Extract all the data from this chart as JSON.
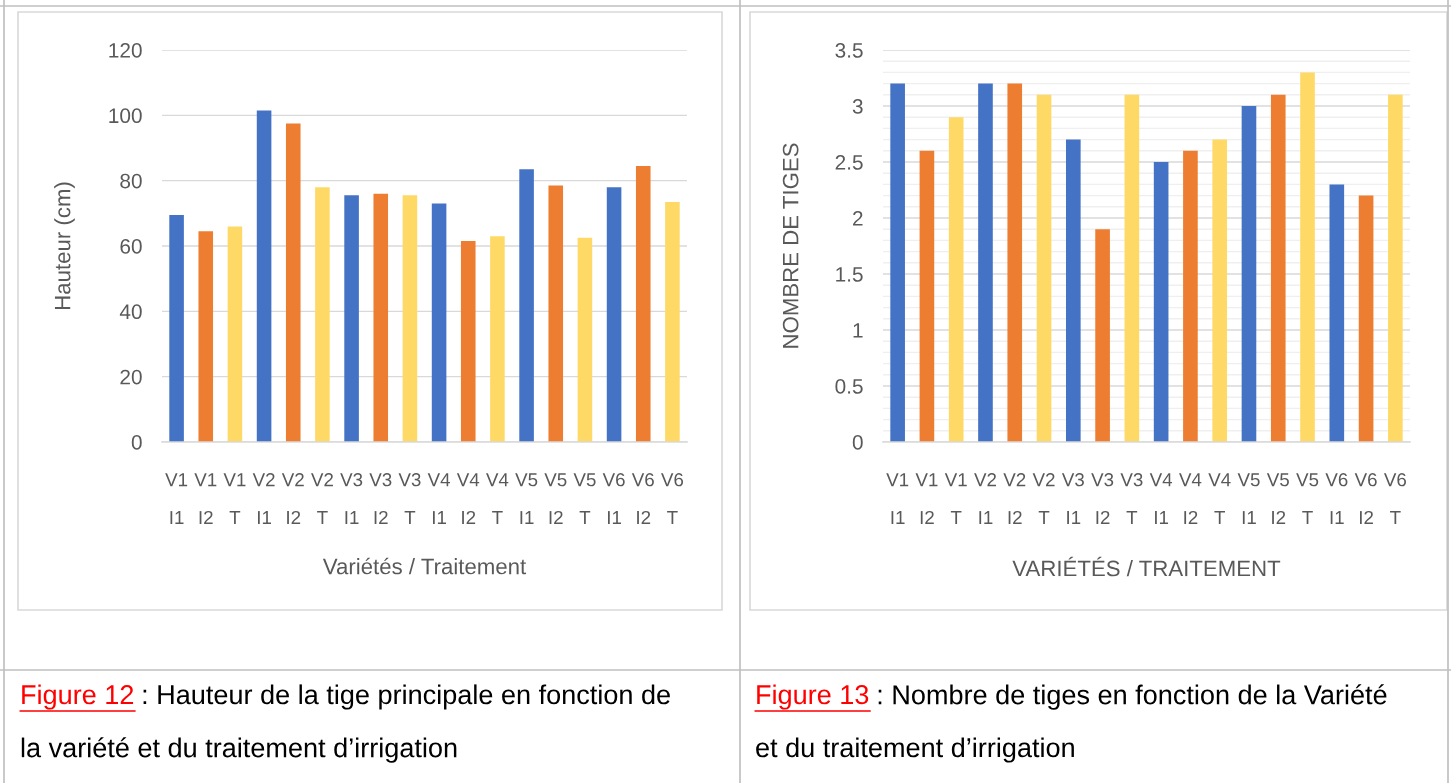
{
  "chart_data": [
    {
      "type": "bar",
      "categories": [
        "V1\nI1",
        "V1\nI2",
        "V1\nT",
        "V2\nI1",
        "V2\nI2",
        "V2\nT",
        "V3\nI1",
        "V3\nI2",
        "V3\nT",
        "V4\nI1",
        "V4\nI2",
        "V4\nT",
        "V5\nI1",
        "V5\nI2",
        "V5\nT",
        "V6\nI1",
        "V6\nI2",
        "V6\nT"
      ],
      "values": [
        69.5,
        64.5,
        66,
        101.5,
        97.5,
        78,
        75.5,
        76,
        75.5,
        73,
        61.5,
        63,
        83.5,
        78.5,
        62.5,
        78,
        84.5,
        73.5
      ],
      "colors": [
        "#4472c4",
        "#ed7d31",
        "#ffd966",
        "#4472c4",
        "#ed7d31",
        "#ffd966",
        "#4472c4",
        "#ed7d31",
        "#ffd966",
        "#4472c4",
        "#ed7d31",
        "#ffd966",
        "#4472c4",
        "#ed7d31",
        "#ffd966",
        "#4472c4",
        "#ed7d31",
        "#ffd966"
      ],
      "ylabel": "Hauteur (cm)",
      "xlabel": "Variétés / Traitement",
      "ylim": [
        0,
        120
      ],
      "yticks": [
        0,
        20,
        40,
        60,
        80,
        100,
        120
      ],
      "grid": "y",
      "annotations": [
        "Figure 12",
        ": Hauteur de la tige principale en fonction de",
        "la variété et du traitement d’irrigation"
      ]
    },
    {
      "type": "bar",
      "categories": [
        "V1\nI1",
        "V1\nI2",
        "V1\nT",
        "V2\nI1",
        "V2\nI2",
        "V2\nT",
        "V3\nI1",
        "V3\nI2",
        "V3\nT",
        "V4\nI1",
        "V4\nI2",
        "V4\nT",
        "V5\nI1",
        "V5\nI2",
        "V5\nT",
        "V6\nI1",
        "V6\nI2",
        "V6\nT"
      ],
      "values": [
        3.2,
        2.6,
        2.9,
        3.2,
        3.2,
        3.1,
        2.7,
        1.9,
        3.1,
        2.5,
        2.6,
        2.7,
        3.0,
        3.1,
        3.3,
        2.3,
        2.2,
        3.1
      ],
      "colors": [
        "#4472c4",
        "#ed7d31",
        "#ffd966",
        "#4472c4",
        "#ed7d31",
        "#ffd966",
        "#4472c4",
        "#ed7d31",
        "#ffd966",
        "#4472c4",
        "#ed7d31",
        "#ffd966",
        "#4472c4",
        "#ed7d31",
        "#ffd966",
        "#4472c4",
        "#ed7d31",
        "#ffd966"
      ],
      "ylabel": "NOMBRE DE TIGES",
      "xlabel": "VARIÉTÉS / TRAITEMENT",
      "ylim": [
        0,
        3.5
      ],
      "yticks": [
        0,
        {
          "value": 0.1,
          "label": null
        },
        {
          "value": 0.2,
          "label": null
        },
        {
          "value": 0.3,
          "label": null
        },
        {
          "value": 0.4,
          "label": null
        },
        0.5,
        {
          "value": 0.6,
          "label": null
        },
        {
          "value": 0.7,
          "label": null
        },
        {
          "value": 0.8,
          "label": null
        },
        {
          "value": 0.9,
          "label": null
        },
        1,
        {
          "value": 1.1,
          "label": null
        },
        {
          "value": 1.2,
          "label": null
        },
        {
          "value": 1.3,
          "label": null
        },
        {
          "value": 1.4,
          "label": null
        },
        1.5,
        {
          "value": 1.6,
          "label": null
        },
        {
          "value": 1.7,
          "label": null
        },
        {
          "value": 1.8,
          "label": null
        },
        {
          "value": 1.9,
          "label": null
        },
        2,
        {
          "value": 2.1,
          "label": null
        },
        {
          "value": 2.2,
          "label": null
        },
        {
          "value": 2.3,
          "label": null
        },
        {
          "value": 2.4,
          "label": null
        },
        2.5,
        {
          "value": 2.6,
          "label": null
        },
        {
          "value": 2.7,
          "label": null
        },
        {
          "value": 2.8,
          "label": null
        },
        {
          "value": 2.9,
          "label": null
        },
        3,
        {
          "value": 3.1,
          "label": null
        },
        {
          "value": 3.2,
          "label": null
        },
        {
          "value": 3.3,
          "label": null
        },
        {
          "value": 3.4,
          "label": null
        },
        3.5
      ],
      "grid": "y",
      "annotations": [
        "Figure 13",
        ": Nombre de tiges en fonction de la Variété",
        "et du traitement d’irrigation"
      ]
    }
  ]
}
